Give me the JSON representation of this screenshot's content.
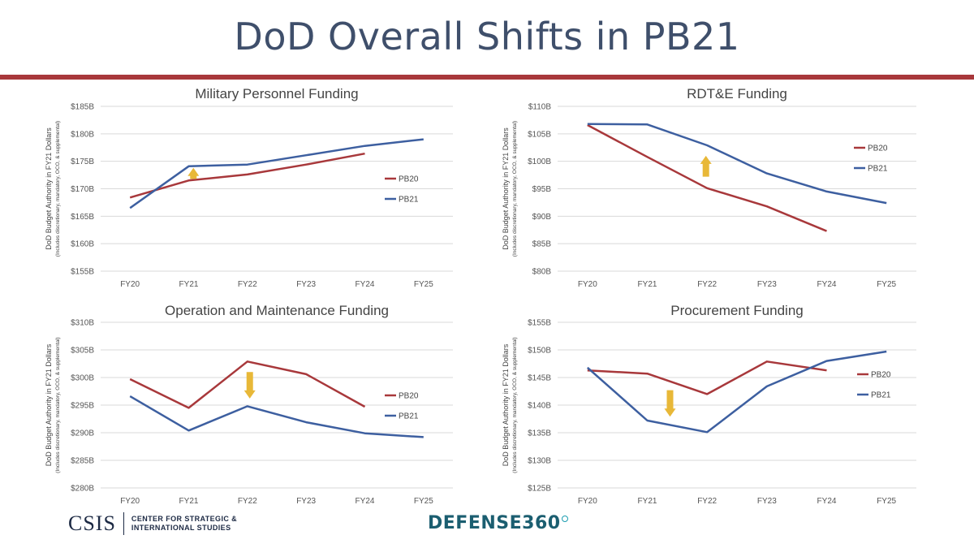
{
  "slide": {
    "title": "DoD Overall Shifts in PB21"
  },
  "footer": {
    "csis_wordmark": "CSIS",
    "csis_line1": "CENTER FOR STRATEGIC &",
    "csis_line2": "INTERNATIONAL STUDIES",
    "defense360": "DEFENSE360"
  },
  "colors": {
    "PB20": "#a8383b",
    "PB21": "#3d5fa0",
    "arrow": "#e8b838",
    "grid": "#d9d9d9",
    "title_rule": "#a8383b"
  },
  "chart_data": [
    {
      "type": "line",
      "title": "Military Personnel Funding",
      "ylabel": "DoD Budget Authority in FY21 Dollars",
      "ylabel_sub": "(Includes discretionary, mandatory, OCO, & supplemental)",
      "categories": [
        "FY20",
        "FY21",
        "FY22",
        "FY23",
        "FY24",
        "FY25"
      ],
      "ylim": [
        155,
        185
      ],
      "yticks": [
        "$155B",
        "$160B",
        "$165B",
        "$170B",
        "$175B",
        "$180B",
        "$185B"
      ],
      "series": [
        {
          "name": "PB20",
          "values": [
            168.4,
            171.5,
            172.6,
            174.4,
            176.4,
            null
          ]
        },
        {
          "name": "PB21",
          "values": [
            166.5,
            174.1,
            174.4,
            176.1,
            177.8,
            179.0
          ]
        }
      ],
      "arrow": {
        "direction": "up",
        "category_pos": 1.08,
        "from": 171.8,
        "to": 173.8
      },
      "legend": "right",
      "grid": true
    },
    {
      "type": "line",
      "title": "RDT&E Funding",
      "ylabel": "DoD Budget Authority in FY21 Dollars",
      "ylabel_sub": "(Includes discretionary, mandatory, OCO, & supplemental)",
      "categories": [
        "FY20",
        "FY21",
        "FY22",
        "FY23",
        "FY24",
        "FY25"
      ],
      "ylim": [
        80,
        110
      ],
      "yticks": [
        "$80B",
        "$85B",
        "$90B",
        "$95B",
        "$100B",
        "$105B",
        "$110B"
      ],
      "series": [
        {
          "name": "PB20",
          "values": [
            106.6,
            100.8,
            95.1,
            91.8,
            87.3,
            null
          ]
        },
        {
          "name": "PB21",
          "values": [
            106.8,
            106.7,
            102.9,
            97.8,
            94.5,
            92.4
          ]
        }
      ],
      "arrow": {
        "direction": "up",
        "category_pos": 1.98,
        "from": 97.2,
        "to": 101.0
      },
      "legend": "right",
      "grid": true
    },
    {
      "type": "line",
      "title": "Operation and Maintenance Funding",
      "ylabel": "DoD Budget Authority in FY21 Dollars",
      "ylabel_sub": "(Includes discretionary, mandatory, OCO, & supplemental)",
      "categories": [
        "FY20",
        "FY21",
        "FY22",
        "FY23",
        "FY24",
        "FY25"
      ],
      "ylim": [
        280,
        310
      ],
      "yticks": [
        "$280B",
        "$285B",
        "$290B",
        "$295B",
        "$300B",
        "$305B",
        "$310B"
      ],
      "series": [
        {
          "name": "PB20",
          "values": [
            299.7,
            294.5,
            302.9,
            300.6,
            294.7,
            null
          ]
        },
        {
          "name": "PB21",
          "values": [
            296.6,
            290.4,
            294.8,
            291.9,
            289.9,
            289.2
          ]
        }
      ],
      "arrow": {
        "direction": "down",
        "category_pos": 2.04,
        "from": 301.0,
        "to": 296.2
      },
      "legend": "right",
      "grid": true
    },
    {
      "type": "line",
      "title": "Procurement Funding",
      "ylabel": "DoD Budget Authority in FY21 Dollars",
      "ylabel_sub": "(Includes discretionary, mandatory, OCO, & supplemental)",
      "categories": [
        "FY20",
        "FY21",
        "FY22",
        "FY23",
        "FY24",
        "FY25"
      ],
      "ylim": [
        125,
        155
      ],
      "yticks": [
        "$125B",
        "$130B",
        "$135B",
        "$140B",
        "$145B",
        "$150B",
        "$155B"
      ],
      "series": [
        {
          "name": "PB20",
          "values": [
            146.3,
            145.7,
            142.0,
            147.9,
            146.3,
            null
          ]
        },
        {
          "name": "PB21",
          "values": [
            146.8,
            137.2,
            135.1,
            143.4,
            148.0,
            149.7
          ]
        }
      ],
      "arrow": {
        "direction": "down",
        "category_pos": 1.38,
        "from": 142.7,
        "to": 137.9
      },
      "legend": "right",
      "grid": true
    }
  ]
}
